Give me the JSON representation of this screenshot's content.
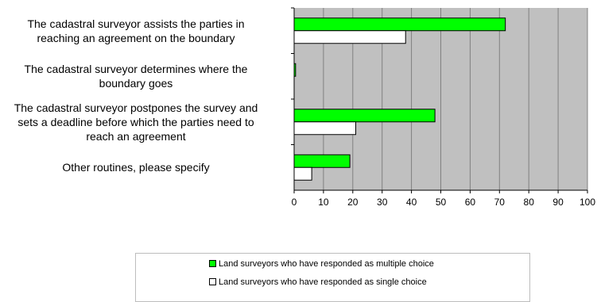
{
  "chart_data": {
    "type": "bar",
    "orientation": "horizontal",
    "categories": [
      [
        "The cadastral surveyor assists the parties in",
        "reaching an agreement on the boundary"
      ],
      [
        "The cadastral surveyor determines where the",
        "boundary goes"
      ],
      [
        "The cadastral surveyor postpones the survey and",
        "sets a deadline before which the parties need to",
        "reach an agreement"
      ],
      [
        "Other routines, please specify"
      ]
    ],
    "series": [
      {
        "name": "Land surveyors who have responded as multiple choice",
        "color": "#00ff00",
        "values": [
          72,
          0.5,
          48,
          19
        ]
      },
      {
        "name": "Land surveyors who have responded as single choice",
        "color": "#ffffff",
        "values": [
          38,
          0,
          21,
          6
        ]
      }
    ],
    "xlim": [
      0,
      100
    ],
    "xticks": [
      "0",
      "10",
      "20",
      "30",
      "40",
      "50",
      "60",
      "70",
      "80",
      "90",
      "100"
    ],
    "grid": true,
    "plot_background": "#c0c0c0",
    "legend_position": "bottom"
  }
}
